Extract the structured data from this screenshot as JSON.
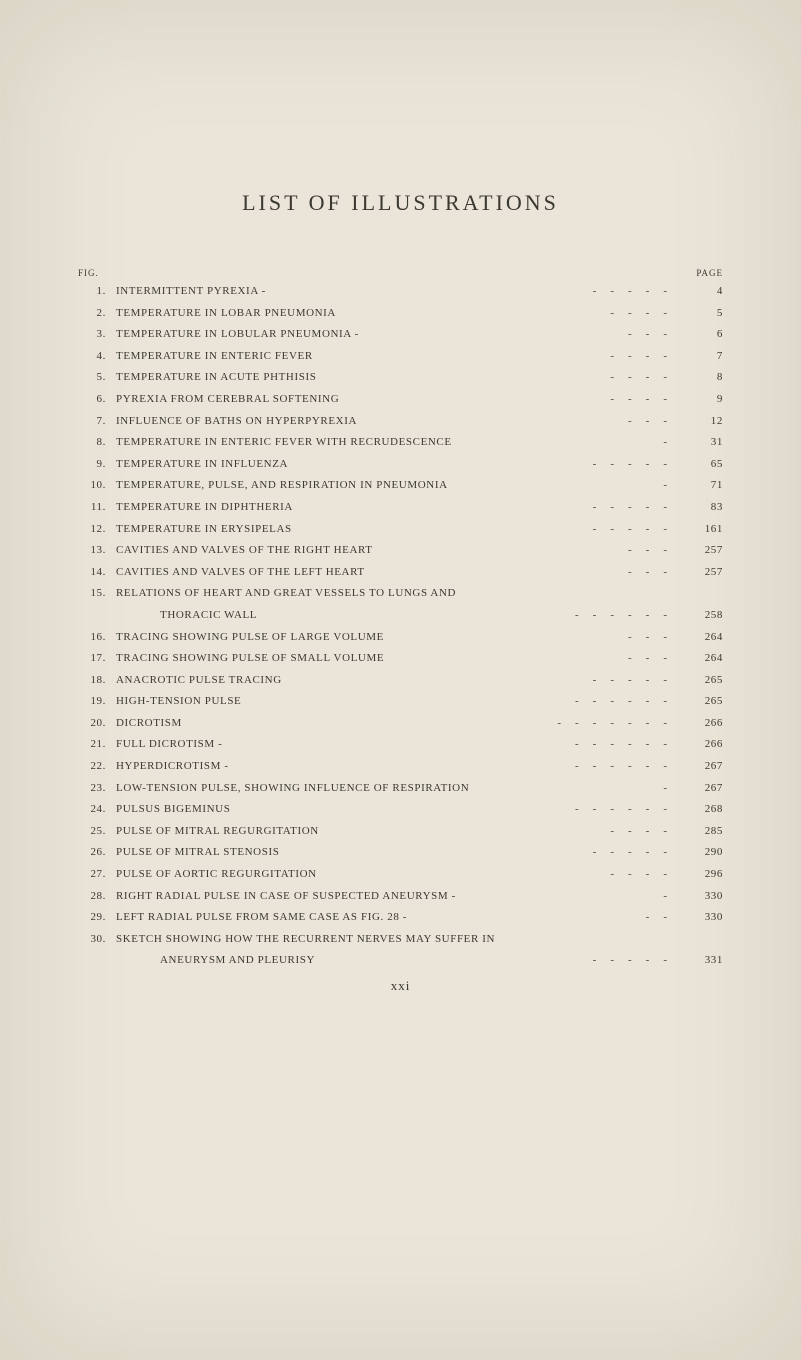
{
  "background_color": "#eae5d8",
  "text_color": "#3a3932",
  "title": "LIST OF ILLUSTRATIONS",
  "header_left": "FIG.",
  "header_right": "PAGE",
  "footer": "xxi",
  "entries": [
    {
      "num": "1.",
      "label": "INTERMITTENT PYREXIA -",
      "dashes": 5,
      "page": "4"
    },
    {
      "num": "2.",
      "label": "TEMPERATURE IN LOBAR PNEUMONIA",
      "dashes": 4,
      "page": "5"
    },
    {
      "num": "3.",
      "label": "TEMPERATURE IN LOBULAR PNEUMONIA -",
      "dashes": 3,
      "page": "6"
    },
    {
      "num": "4.",
      "label": "TEMPERATURE IN ENTERIC FEVER",
      "dashes": 4,
      "page": "7"
    },
    {
      "num": "5.",
      "label": "TEMPERATURE IN ACUTE PHTHISIS",
      "dashes": 4,
      "page": "8"
    },
    {
      "num": "6.",
      "label": "PYREXIA FROM CEREBRAL SOFTENING",
      "dashes": 4,
      "page": "9"
    },
    {
      "num": "7.",
      "label": "INFLUENCE OF BATHS ON HYPERPYREXIA",
      "dashes": 3,
      "page": "12"
    },
    {
      "num": "8.",
      "label": "TEMPERATURE IN ENTERIC FEVER WITH RECRUDESCENCE",
      "dashes": 1,
      "page": "31"
    },
    {
      "num": "9.",
      "label": "TEMPERATURE IN INFLUENZA",
      "dashes": 5,
      "page": "65"
    },
    {
      "num": "10.",
      "label": "TEMPERATURE, PULSE, AND RESPIRATION IN PNEUMONIA",
      "dashes": 1,
      "page": "71"
    },
    {
      "num": "11.",
      "label": "TEMPERATURE IN DIPHTHERIA",
      "dashes": 5,
      "page": "83"
    },
    {
      "num": "12.",
      "label": "TEMPERATURE IN ERYSIPELAS",
      "dashes": 5,
      "page": "161"
    },
    {
      "num": "13.",
      "label": "CAVITIES AND VALVES OF THE RIGHT HEART",
      "dashes": 3,
      "page": "257"
    },
    {
      "num": "14.",
      "label": "CAVITIES AND VALVES OF THE LEFT HEART",
      "dashes": 3,
      "page": "257"
    },
    {
      "num": "15.",
      "label": "RELATIONS OF HEART AND GREAT VESSELS TO LUNGS AND",
      "dashes": 0,
      "page": ""
    },
    {
      "num": "",
      "label": "THORACIC WALL",
      "dashes": 6,
      "page": "258",
      "indent": true
    },
    {
      "num": "16.",
      "label": "TRACING SHOWING PULSE OF LARGE VOLUME",
      "dashes": 3,
      "page": "264"
    },
    {
      "num": "17.",
      "label": "TRACING SHOWING PULSE OF SMALL VOLUME",
      "dashes": 3,
      "page": "264"
    },
    {
      "num": "18.",
      "label": "ANACROTIC PULSE TRACING",
      "dashes": 5,
      "page": "265"
    },
    {
      "num": "19.",
      "label": "HIGH-TENSION PULSE",
      "dashes": 6,
      "page": "265"
    },
    {
      "num": "20.",
      "label": "DICROTISM",
      "dashes": 7,
      "page": "266"
    },
    {
      "num": "21.",
      "label": "FULL DICROTISM -",
      "dashes": 6,
      "page": "266"
    },
    {
      "num": "22.",
      "label": "HYPERDICROTISM -",
      "dashes": 6,
      "page": "267"
    },
    {
      "num": "23.",
      "label": "LOW-TENSION PULSE, SHOWING INFLUENCE OF RESPIRATION",
      "dashes": 1,
      "page": "267"
    },
    {
      "num": "24.",
      "label": "PULSUS BIGEMINUS",
      "dashes": 6,
      "page": "268"
    },
    {
      "num": "25.",
      "label": "PULSE OF MITRAL REGURGITATION",
      "dashes": 4,
      "page": "285"
    },
    {
      "num": "26.",
      "label": "PULSE OF MITRAL STENOSIS",
      "dashes": 5,
      "page": "290"
    },
    {
      "num": "27.",
      "label": "PULSE OF AORTIC REGURGITATION",
      "dashes": 4,
      "page": "296"
    },
    {
      "num": "28.",
      "label": "RIGHT RADIAL PULSE IN CASE OF SUSPECTED ANEURYSM -",
      "dashes": 1,
      "page": "330"
    },
    {
      "num": "29.",
      "label": "LEFT RADIAL PULSE FROM SAME CASE AS FIG. 28 -",
      "dashes": 2,
      "page": "330"
    },
    {
      "num": "30.",
      "label": "SKETCH SHOWING HOW THE RECURRENT NERVES MAY SUFFER IN",
      "dashes": 0,
      "page": ""
    },
    {
      "num": "",
      "label": "ANEURYSM AND PLEURISY",
      "dashes": 5,
      "page": "331",
      "indent": true
    }
  ]
}
